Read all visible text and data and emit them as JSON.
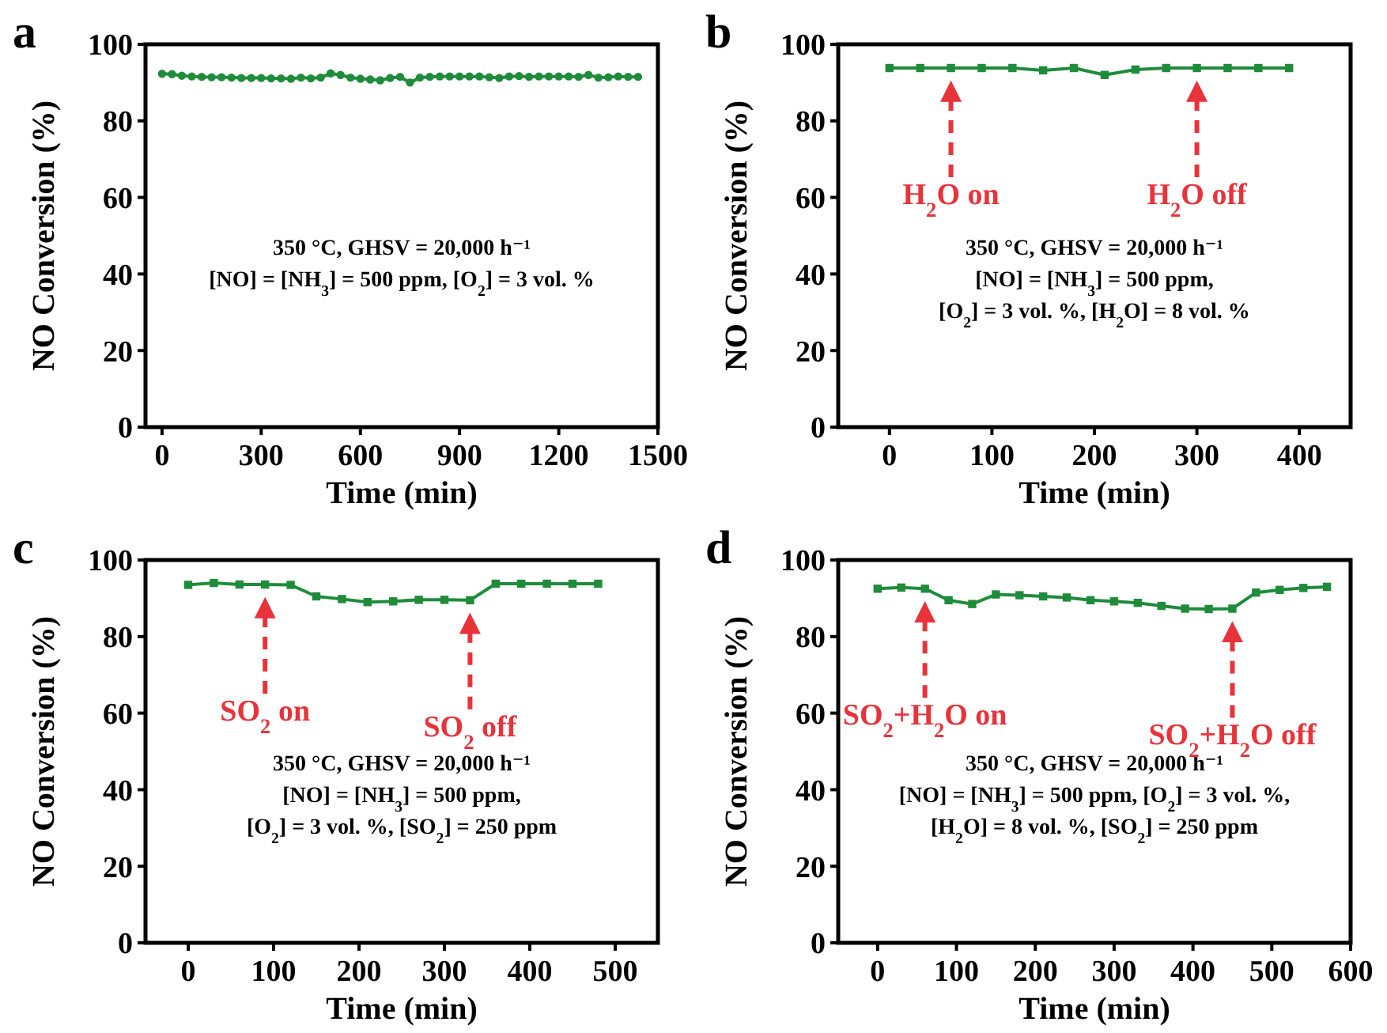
{
  "chart_data": [
    {
      "type": "line",
      "title": "a",
      "xlabel": "Time (min)",
      "ylabel": "NO Conversion (%)",
      "xlim": [
        -50,
        1500
      ],
      "ylim": [
        0,
        100
      ],
      "xticks": [
        0,
        300,
        600,
        900,
        1200,
        1500
      ],
      "yticks": [
        0,
        20,
        40,
        60,
        80,
        100
      ],
      "marker": "circle",
      "line_style": "solid",
      "x": [
        0,
        30,
        60,
        90,
        120,
        150,
        180,
        210,
        240,
        270,
        300,
        330,
        360,
        390,
        420,
        450,
        480,
        510,
        540,
        570,
        600,
        630,
        660,
        690,
        720,
        750,
        780,
        810,
        840,
        870,
        900,
        930,
        960,
        990,
        1020,
        1050,
        1080,
        1110,
        1140,
        1170,
        1200,
        1230,
        1260,
        1290,
        1320,
        1350,
        1380,
        1410,
        1440
      ],
      "series": [
        {
          "color": "#1e8c3a",
          "values": [
            92.3,
            92.2,
            91.8,
            91.6,
            91.5,
            91.4,
            91.4,
            91.3,
            91.2,
            91.2,
            91.2,
            91.1,
            91.1,
            91,
            91.3,
            91.1,
            91.3,
            92.4,
            92,
            91.3,
            91,
            90.8,
            90.6,
            91.2,
            91.5,
            90,
            91.3,
            91.5,
            91.6,
            91.6,
            91.6,
            91.6,
            91.6,
            91.4,
            91.2,
            91.6,
            91.7,
            91.5,
            91.6,
            91.6,
            91.6,
            91.6,
            91.5,
            92,
            91.3,
            91.4,
            91.6,
            91.5,
            91.5
          ]
        }
      ],
      "annotations": [
        "350 °C, GHSV = 20,000 h⁻¹",
        "[NO] = [NH$_{3}$] = 500 ppm,  [O$_{2}$] = 3 vol. %"
      ]
    },
    {
      "type": "line",
      "title": "b",
      "xlabel": "Time (min)",
      "ylabel": "NO Conversion (%)",
      "xlim": [
        -50,
        450
      ],
      "ylim": [
        0,
        100
      ],
      "xticks": [
        0,
        100,
        200,
        300,
        400
      ],
      "yticks": [
        0,
        20,
        40,
        60,
        80,
        100
      ],
      "marker": "square",
      "line_style": "solid",
      "x": [
        0,
        30,
        60,
        90,
        120,
        150,
        180,
        210,
        240,
        270,
        300,
        330,
        360,
        390
      ],
      "series": [
        {
          "color": "#1e8c3a",
          "values": [
            93.8,
            93.8,
            93.8,
            93.8,
            93.8,
            93.2,
            93.8,
            92,
            93.4,
            93.8,
            93.8,
            93.8,
            93.8,
            93.8
          ]
        }
      ],
      "ref_lines": [
        {
          "axis": "x",
          "value": 60,
          "label": "H$_{2}$O on",
          "color": "#e8333a",
          "line_style": "dashed"
        },
        {
          "axis": "x",
          "value": 300,
          "label": "H$_{2}$O off",
          "color": "#e8333a",
          "line_style": "dashed"
        }
      ],
      "annotations": [
        "350 °C, GHSV = 20,000 h⁻¹",
        "[NO] = [NH$_{3}$] = 500 ppm,",
        "[O$_{2}$] = 3 vol. %, [H$_{2}$O] = 8 vol. %"
      ]
    },
    {
      "type": "line",
      "title": "c",
      "xlabel": "Time (min)",
      "ylabel": "NO Conversion (%)",
      "xlim": [
        -50,
        550
      ],
      "ylim": [
        0,
        100
      ],
      "xticks": [
        0,
        100,
        200,
        300,
        400,
        500
      ],
      "yticks": [
        0,
        20,
        40,
        60,
        80,
        100
      ],
      "marker": "square",
      "line_style": "solid",
      "x": [
        0,
        30,
        60,
        90,
        120,
        150,
        180,
        210,
        240,
        270,
        300,
        330,
        360,
        390,
        420,
        450,
        480
      ],
      "series": [
        {
          "color": "#1e8c3a",
          "values": [
            93.5,
            94,
            93.6,
            93.6,
            93.5,
            90.5,
            89.8,
            89,
            89.2,
            89.6,
            89.6,
            89.5,
            93.8,
            93.8,
            93.8,
            93.8,
            93.8
          ]
        }
      ],
      "ref_lines": [
        {
          "axis": "x",
          "value": 90,
          "label": "SO$_{2}$ on",
          "color": "#e8333a",
          "line_style": "dashed"
        },
        {
          "axis": "x",
          "value": 330,
          "label": "SO$_{2}$ off",
          "color": "#e8333a",
          "line_style": "dashed"
        }
      ],
      "annotations": [
        "350 °C, GHSV = 20,000 h⁻¹",
        "[NO] = [NH$_{3}$] = 500 ppm,",
        "[O$_{2}$] = 3 vol. %, [SO$_{2}$] = 250 ppm"
      ]
    },
    {
      "type": "line",
      "title": "d",
      "xlabel": "Time (min)",
      "ylabel": "NO Conversion (%)",
      "xlim": [
        -50,
        600
      ],
      "ylim": [
        0,
        100
      ],
      "xticks": [
        0,
        100,
        200,
        300,
        400,
        500,
        600
      ],
      "yticks": [
        0,
        20,
        40,
        60,
        80,
        100
      ],
      "marker": "square",
      "line_style": "solid",
      "x": [
        0,
        30,
        60,
        90,
        120,
        150,
        180,
        210,
        240,
        270,
        300,
        330,
        360,
        390,
        420,
        450,
        480,
        510,
        540,
        570
      ],
      "series": [
        {
          "color": "#1e8c3a",
          "values": [
            92.5,
            92.8,
            92.5,
            89.5,
            88.5,
            91,
            90.8,
            90.5,
            90.2,
            89.5,
            89.2,
            88.8,
            88,
            87.3,
            87.2,
            87.3,
            91.5,
            92.2,
            92.7,
            93
          ]
        }
      ],
      "ref_lines": [
        {
          "axis": "x",
          "value": 60,
          "label": "SO$_{2}$+H$_{2}$O on",
          "color": "#e8333a",
          "line_style": "dashed"
        },
        {
          "axis": "x",
          "value": 450,
          "label": "SO$_{2}$+H$_{2}$O off",
          "color": "#e8333a",
          "line_style": "dashed"
        }
      ],
      "annotations": [
        "350 °C, GHSV = 20,000 h⁻¹",
        "[NO] = [NH$_{3}$] = 500 ppm, [O$_{2}$] = 3 vol. %,",
        "[H$_{2}$O] = 8 vol. %, [SO$_{2}$] = 250 ppm"
      ]
    }
  ]
}
